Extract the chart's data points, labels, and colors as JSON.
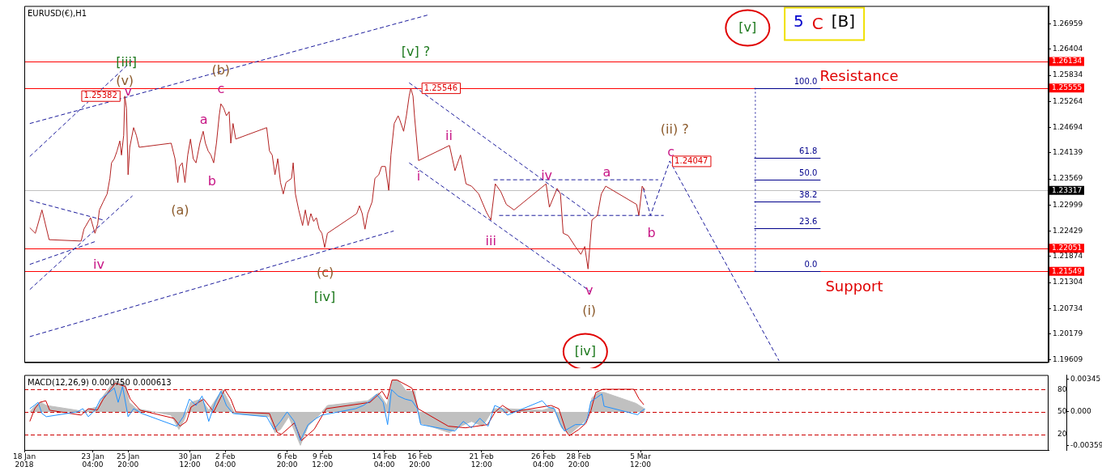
{
  "chart_data": [
    {
      "type": "line",
      "title": "EURUSD(€),H1",
      "xlim": [
        "2018-01-18T00:00",
        "2018-04-05T07:00"
      ],
      "ylim": [
        1.1956,
        1.2735
      ],
      "y2lim": [
        -49.65,
        144.81
      ],
      "tick_labels": "y",
      "marker": "none",
      "yticks": [
        1.26959,
        1.26404,
        1.25834,
        1.25264,
        1.24694,
        1.24139,
        1.23569,
        1.22999,
        1.22429,
        1.21874,
        1.21304,
        1.20734,
        1.20179,
        1.19609
      ],
      "series": [
        {
          "color": "#b22222",
          "x": [
            "2018-01-18T10:00",
            "2018-01-18T20:00",
            "2018-01-19T08:00",
            "2018-01-19T21:00",
            "2018-01-22T07:00",
            "2018-01-22T12:00",
            "2018-01-23T00:00",
            "2018-01-23T08:00",
            "2018-01-23T13:00",
            "2018-01-23T16:00",
            "2018-01-23T23:00",
            "2018-01-24T06:00",
            "2018-01-24T11:00",
            "2018-01-24T14:00",
            "2018-01-24T19:00",
            "2018-01-25T00:00",
            "2018-01-25T05:00",
            "2018-01-25T08:00",
            "2018-01-25T12:00",
            "2018-01-25T14:00",
            "2018-01-25T17:00",
            "2018-01-25T20:00",
            "2018-01-25T23:00",
            "2018-01-26T06:00",
            "2018-01-26T11:00",
            "2018-01-26T16:00",
            "2018-01-29T02:00",
            "2018-01-29T09:00",
            "2018-01-29T14:00",
            "2018-01-29T17:00",
            "2018-01-29T22:00",
            "2018-01-30T03:00",
            "2018-01-30T08:00",
            "2018-01-30T13:00",
            "2018-01-30T18:00",
            "2018-01-30T23:00",
            "2018-01-31T06:00",
            "2018-01-31T12:00",
            "2018-01-31T16:00",
            "2018-01-31T21:00",
            "2018-02-01T02:00",
            "2018-02-01T07:00",
            "2018-02-01T12:00",
            "2018-02-01T17:00",
            "2018-02-01T20:00",
            "2018-02-02T01:00",
            "2018-02-02T06:00",
            "2018-02-02T11:00",
            "2018-02-02T14:00",
            "2018-02-02T18:00",
            "2018-02-02T23:00",
            "2018-02-05T07:00",
            "2018-02-05T12:00",
            "2018-02-05T17:00",
            "2018-02-05T22:00",
            "2018-02-06T03:00",
            "2018-02-06T08:00",
            "2018-02-06T13:00",
            "2018-02-06T18:00",
            "2018-02-07T04:00",
            "2018-02-07T07:00",
            "2018-02-07T11:00",
            "2018-02-07T17:00",
            "2018-02-08T00:00",
            "2018-02-08T05:00",
            "2018-02-08T10:00",
            "2018-02-08T15:00",
            "2018-02-08T20:00",
            "2018-02-09T01:00",
            "2018-02-09T06:00",
            "2018-02-09T11:00",
            "2018-02-09T16:00",
            "2018-02-09T21:00",
            "2018-02-12T02:00",
            "2018-02-12T07:00",
            "2018-02-12T12:00",
            "2018-02-12T17:00",
            "2018-02-12T22:00",
            "2018-02-13T06:00",
            "2018-02-13T11:00",
            "2018-02-13T18:00",
            "2018-02-13T23:00",
            "2018-02-14T06:00",
            "2018-02-14T12:00",
            "2018-02-14T16:00",
            "2018-02-14T22:00",
            "2018-02-15T05:00",
            "2018-02-15T08:00",
            "2018-02-15T15:00",
            "2018-02-15T20:00",
            "2018-02-16T01:00",
            "2018-02-16T04:00",
            "2018-02-16T08:00",
            "2018-02-16T11:00",
            "2018-02-16T18:00",
            "2018-02-19T02:00",
            "2018-02-19T12:00",
            "2018-02-19T22:00",
            "2018-02-20T08:00",
            "2018-02-20T18:00",
            "2018-02-21T07:00",
            "2018-02-21T21:00",
            "2018-02-22T05:00",
            "2018-02-22T13:00",
            "2018-02-22T23:00",
            "2018-02-23T09:00",
            "2018-02-23T23:00",
            "2018-02-26T09:00",
            "2018-02-26T15:00",
            "2018-02-27T05:00",
            "2018-02-27T11:00",
            "2018-02-27T16:00",
            "2018-02-28T01:00",
            "2018-02-28T14:00",
            "2018-03-01T00:00",
            "2018-03-01T07:00",
            "2018-03-01T13:00",
            "2018-03-01T17:00",
            "2018-03-01T20:00",
            "2018-03-02T06:00",
            "2018-03-02T13:00",
            "2018-03-02T21:00",
            "2018-03-05T05:00",
            "2018-03-05T09:00",
            "2018-03-05T15:00",
            "2018-03-05T20:00"
          ],
          "values": [
            1.225,
            1.2238,
            1.2289,
            1.2224,
            1.2221,
            1.2247,
            1.2272,
            1.2238,
            1.2259,
            1.2289,
            1.2307,
            1.2324,
            1.2358,
            1.2392,
            1.2401,
            1.2418,
            1.244,
            1.2409,
            1.2452,
            1.2538,
            1.2512,
            1.2366,
            1.2426,
            1.2469,
            1.2452,
            1.2426,
            1.2435,
            1.2401,
            1.2349,
            1.2384,
            1.2392,
            1.2349,
            1.2409,
            1.2444,
            1.2401,
            1.2392,
            1.2435,
            1.2461,
            1.2435,
            1.2418,
            1.2409,
            1.2392,
            1.2435,
            1.2495,
            1.2521,
            1.2512,
            1.2495,
            1.2504,
            1.2435,
            1.2478,
            1.2444,
            1.2469,
            1.2418,
            1.2409,
            1.2366,
            1.2401,
            1.2349,
            1.2324,
            1.2349,
            1.2358,
            1.2392,
            1.2324,
            1.2289,
            1.2255,
            1.2289,
            1.2255,
            1.2281,
            1.2264,
            1.2272,
            1.2247,
            1.2238,
            1.2207,
            1.2238,
            1.2281,
            1.2298,
            1.2281,
            1.2247,
            1.2281,
            1.2307,
            1.2358,
            1.2366,
            1.2384,
            1.2384,
            1.2332,
            1.2409,
            1.2478,
            1.2495,
            1.2486,
            1.2461,
            1.2495,
            1.2538,
            1.2555,
            1.2538,
            1.249,
            1.2397,
            1.243,
            1.2375,
            1.2409,
            1.2346,
            1.2341,
            1.2324,
            1.2284,
            1.2267,
            1.2346,
            1.2329,
            1.2301,
            1.2289,
            1.2346,
            1.2295,
            1.2336,
            1.2324,
            1.2238,
            1.2233,
            1.2209,
            1.2192,
            1.2209,
            1.216,
            1.2221,
            1.2267,
            1.2277,
            1.2324,
            1.2341,
            1.2301,
            1.2277,
            1.2341,
            1.2332
          ]
        },
        {
          "color": "#1c1c9c",
          "line_style": "dashed",
          "x": [
            "2018-01-18T10:00",
            "2018-02-17T10:00"
          ],
          "values": [
            1.2478,
            1.2715
          ]
        },
        {
          "color": "#1c1c9c",
          "line_style": "dashed",
          "x": [
            "2018-01-18T10:00",
            "2018-01-26T03:00"
          ],
          "values": [
            1.2406,
            1.2615
          ]
        },
        {
          "color": "#1c1c9c",
          "line_style": "dashed",
          "x": [
            "2018-01-18T10:00",
            "2018-01-26T04:00"
          ],
          "values": [
            1.2115,
            1.232
          ]
        },
        {
          "color": "#1c1c9c",
          "line_style": "dashed",
          "x": [
            "2018-01-18T10:00",
            "2018-01-23T11:00"
          ],
          "values": [
            1.217,
            1.2221
          ]
        },
        {
          "color": "#1c1c9c",
          "line_style": "dashed",
          "x": [
            "2018-01-18T10:00",
            "2018-01-23T23:00"
          ],
          "values": [
            1.231,
            1.2267
          ]
        },
        {
          "color": "#1c1c9c",
          "line_style": "dashed",
          "x": [
            "2018-01-18T10:00",
            "2018-02-14T21:00"
          ],
          "values": [
            1.2012,
            1.2243
          ]
        },
        {
          "color": "#1c1c9c",
          "line_style": "dashed",
          "x": [
            "2018-02-16T01:00",
            "2018-03-01T20:00"
          ],
          "values": [
            1.2567,
            1.2277
          ]
        },
        {
          "color": "#1c1c9c",
          "line_style": "dashed",
          "x": [
            "2018-02-16T01:00",
            "2018-03-01T18:00"
          ],
          "values": [
            1.2392,
            1.211
          ]
        },
        {
          "color": "#1c1c9c",
          "line_style": "dashed",
          "x": [
            "2018-02-22T10:00",
            "2018-03-06T20:00"
          ],
          "values": [
            1.2355,
            1.2355
          ]
        },
        {
          "color": "#1c1c9c",
          "line_style": "dashed",
          "x": [
            "2018-02-22T20:00",
            "2018-03-07T06:00"
          ],
          "values": [
            1.2277,
            1.2277
          ]
        },
        {
          "color": "#1c1c9c",
          "line_style": "dashed",
          "x": [
            "2018-03-05T17:00",
            "2018-03-06T06:00",
            "2018-03-07T17:00",
            "2018-03-15T23:00"
          ],
          "values": [
            1.2336,
            1.2277,
            1.2396,
            1.1959
          ]
        },
        {
          "color": "#1c1c9c",
          "line_style": "dotted",
          "x": [
            "2018-03-14T04:00",
            "2018-03-14T04:00"
          ],
          "values": [
            1.2556,
            1.2155
          ]
        }
      ],
      "ref_lines": [
        {
          "axis": "y",
          "value": 1.26134,
          "label": "1.26134",
          "color": "#ff0000"
        },
        {
          "axis": "y",
          "value": 1.25555,
          "label": "1.25555",
          "color": "#ff0000"
        },
        {
          "axis": "y",
          "value": 1.23317,
          "label": "1.23317",
          "color": "#c0c0c0"
        },
        {
          "axis": "y",
          "value": 1.22051,
          "label": "1.22051",
          "color": "#ff0000"
        },
        {
          "axis": "y",
          "value": 1.21549,
          "label": "1.21549",
          "color": "#ff0000"
        },
        {
          "axis": "y2",
          "value": 100,
          "label": "100.0",
          "color": "#00008b"
        },
        {
          "axis": "y2",
          "value": 61.8,
          "label": "61.8",
          "color": "#00008b"
        },
        {
          "axis": "y2",
          "value": 50,
          "label": "50.0",
          "color": "#00008b"
        },
        {
          "axis": "y2",
          "value": 38.2,
          "label": "38.2",
          "color": "#00008b"
        },
        {
          "axis": "y2",
          "value": 23.6,
          "label": "23.6",
          "color": "#00008b"
        },
        {
          "axis": "y2",
          "value": 0,
          "label": "0.0",
          "color": "#00008b"
        }
      ],
      "annotations": [
        "[iii]",
        "(v)",
        "v",
        {
          "text": "1.25382",
          "x": "2018-01-25T14:00",
          "y": 1.2538
        },
        "iv",
        "(b)",
        "c",
        "a",
        "b",
        "(a)",
        "(c)",
        "[iv]",
        "[v] ?",
        {
          "text": "1.25546",
          "x": "2018-02-16T04:00",
          "y": 1.2555
        },
        "ii",
        "i",
        "iii",
        "iv",
        "v",
        "(i)",
        "[iv]",
        "a",
        "b",
        "c",
        "(ii) ?",
        "1.24047",
        "[v]",
        "Resistance",
        "Support",
        "5 C [B]"
      ]
    },
    {
      "type": "line",
      "title": "MACD(12,26,9) 0.000750 0.000613",
      "xlim": [
        "2018-01-18T00:00",
        "2018-04-05T07:00"
      ],
      "ylim": [
        -0.00404,
        0.00391
      ],
      "y2lim": [
        -0.9,
        99.3
      ],
      "marker": "none",
      "xticks": [
        {
          "value": "2018-01-18T00:00",
          "label": "18 Jan 2018"
        },
        {
          "value": "2018-01-23T04:00",
          "label": "23 Jan 04:00"
        },
        {
          "value": "2018-01-25T20:00",
          "label": "25 Jan 20:00"
        },
        {
          "value": "2018-01-30T12:00",
          "label": "30 Jan 12:00"
        },
        {
          "value": "2018-02-02T04:00",
          "label": "2 Feb 04:00"
        },
        {
          "value": "2018-02-06T20:00",
          "label": "6 Feb 20:00"
        },
        {
          "value": "2018-02-09T12:00",
          "label": "9 Feb 12:00"
        },
        {
          "value": "2018-02-14T04:00",
          "label": "14 Feb 04:00"
        },
        {
          "value": "2018-02-16T20:00",
          "label": "16 Feb 20:00"
        },
        {
          "value": "2018-02-21T12:00",
          "label": "21 Feb 12:00"
        },
        {
          "value": "2018-02-26T04:00",
          "label": "26 Feb 04:00"
        },
        {
          "value": "2018-02-28T20:00",
          "label": "28 Feb 20:00"
        },
        {
          "value": "2018-03-05T12:00",
          "label": "5 Mar 12:00"
        }
      ],
      "yticks": [
        0.00345,
        {
          "value": 0,
          "label": "0.000"
        },
        -0.00359
      ],
      "y2ticks": [
        80,
        50,
        20
      ],
      "series": [
        {
          "type": "area",
          "color": "#c0c0c0",
          "x": [
            "2018-01-18T10:00",
            "2018-01-18T20:00",
            "2018-01-19T06:00",
            "2018-01-19T16:00",
            "2018-01-22T00:00",
            "2018-01-22T09:00",
            "2018-01-22T22:00",
            "2018-01-23T13:00",
            "2018-01-23T23:00",
            "2018-01-24T14:00",
            "2018-01-24T22:00",
            "2018-01-25T06:00",
            "2018-01-25T15:00",
            "2018-01-25T22:00",
            "2018-01-26T11:00",
            "2018-01-29T02:00",
            "2018-01-29T16:00",
            "2018-01-30T03:00",
            "2018-01-30T13:00",
            "2018-01-31T09:00",
            "2018-01-31T22:00",
            "2018-02-01T15:00",
            "2018-02-01T23:00",
            "2018-02-02T08:00",
            "2018-02-02T21:00",
            "2018-02-05T12:00",
            "2018-02-05T22:00",
            "2018-02-06T08:00",
            "2018-02-06T23:00",
            "2018-02-07T20:00",
            "2018-02-08T10:00",
            "2018-02-09T06:00",
            "2018-02-09T21:00",
            "2018-02-12T22:00",
            "2018-02-13T18:00",
            "2018-02-14T09:00",
            "2018-02-14T19:00",
            "2018-02-15T05:00",
            "2018-02-15T20:00",
            "2018-02-16T11:00",
            "2018-02-16T21:00",
            "2018-02-19T02:00",
            "2018-02-19T22:00",
            "2018-02-20T18:00",
            "2018-02-21T14:00",
            "2018-02-22T10:00",
            "2018-02-23T06:00",
            "2018-02-26T02:00",
            "2018-02-26T22:00",
            "2018-02-27T13:00",
            "2018-02-28T04:00",
            "2018-03-01T00:00",
            "2018-03-01T12:00",
            "2018-03-01T20:00",
            "2018-03-02T06:00",
            "2018-03-02T18:00",
            "2018-03-05T04:00",
            "2018-03-05T20:00"
          ],
          "values": [
            0,
            0.00068,
            0.00101,
            0.00068,
            0.00017,
            0,
            0.00034,
            0.00051,
            0.00169,
            0.00287,
            0.00338,
            0.00304,
            0.00304,
            0.00101,
            0.00034,
            -0.00034,
            -0.00186,
            -0.00068,
            0.00101,
            0.00135,
            0.00017,
            0.00169,
            0.00237,
            0.00135,
            -0.00017,
            -0.00051,
            -0.0022,
            -0.00186,
            -0.00051,
            -0.00355,
            -0.00152,
            -0.00034,
            0.00068,
            0.00118,
            0.00203,
            0.00068,
            0.00338,
            0.00338,
            0.0022,
            0.0022,
            -0.00118,
            -0.0022,
            -0.00152,
            -0.00101,
            -0.00152,
            0.00034,
            0.00034,
            0.00017,
            0.00051,
            -0.00169,
            -0.00237,
            -0.00135,
            -0.00068,
            0.00148,
            0.00207,
            0.00207,
            0.0009,
            0.0003
          ]
        },
        {
          "color": "#1e90ff",
          "x": [
            "2018-01-18T10:00",
            "2018-01-18T18:00",
            "2018-01-19T01:00",
            "2018-01-19T08:00",
            "2018-01-19T16:00",
            "2018-01-22T00:00",
            "2018-01-22T10:00",
            "2018-01-22T20:00",
            "2018-01-23T08:00",
            "2018-01-23T18:00",
            "2018-01-24T09:00",
            "2018-01-24T19:00",
            "2018-01-25T02:00",
            "2018-01-25T10:00",
            "2018-01-25T20:00",
            "2018-01-26T06:00",
            "2018-01-26T21:00",
            "2018-01-29T12:00",
            "2018-01-30T00:00",
            "2018-01-30T11:00",
            "2018-01-30T23:00",
            "2018-01-31T10:00",
            "2018-01-31T22:00",
            "2018-02-01T10:00",
            "2018-02-01T20:00",
            "2018-02-02T06:00",
            "2018-02-02T18:00",
            "2018-02-05T07:00",
            "2018-02-05T20:00",
            "2018-02-06T08:00",
            "2018-02-06T20:00",
            "2018-02-07T09:00",
            "2018-02-07T20:00",
            "2018-02-08T10:00",
            "2018-02-09T01:00",
            "2018-02-09T11:00",
            "2018-02-12T00:00",
            "2018-02-12T14:00",
            "2018-02-13T03:00",
            "2018-02-13T14:00",
            "2018-02-14T02:00",
            "2018-02-14T10:00",
            "2018-02-14T17:00",
            "2018-02-15T05:00",
            "2018-02-15T18:00",
            "2018-02-16T06:00",
            "2018-02-16T16:00",
            "2018-02-16T22:00",
            "2018-02-19T12:00",
            "2018-02-20T03:00",
            "2018-02-20T18:00",
            "2018-02-21T09:00",
            "2018-02-22T00:00",
            "2018-02-22T12:00",
            "2018-02-23T01:00",
            "2018-02-23T11:00",
            "2018-02-26T02:00",
            "2018-02-26T12:00",
            "2018-02-27T00:00",
            "2018-02-27T10:00",
            "2018-02-27T18:00",
            "2018-02-28T04:00",
            "2018-02-28T14:00",
            "2018-03-01T05:00",
            "2018-03-01T12:00",
            "2018-03-01T18:00",
            "2018-03-02T04:00",
            "2018-03-02T14:00",
            "2018-03-02T18:00",
            "2018-03-05T07:00",
            "2018-03-05T14:00",
            "2018-03-05T20:00"
          ],
          "values": [
            0.00034,
            0.00068,
            0.00101,
            -0.00017,
            -0.00051,
            0,
            0.00034,
            -0.00051,
            0.00017,
            0.00135,
            0.00203,
            0.00253,
            0.00101,
            0.0027,
            -0.00051,
            0.00034,
            -0.00017,
            -0.00152,
            -0.00051,
            0.00135,
            0.00068,
            0.00169,
            -0.00101,
            0.00101,
            0.0022,
            0.00068,
            -0.00017,
            -0.00051,
            -0.00186,
            -0.00101,
            0,
            -0.00101,
            -0.00304,
            -0.00135,
            -0.00068,
            -0.00034,
            0.00034,
            0.00068,
            0.00118,
            0.00186,
            0.00101,
            -0.00135,
            0.00237,
            0.00169,
            0.00135,
            0.00118,
            0.00034,
            -0.00135,
            -0.00203,
            -0.00101,
            -0.00169,
            -0.00068,
            -0.00152,
            0.00068,
            0.00034,
            -0.00034,
            0.00118,
            0.00051,
            0.00034,
            -0.00118,
            -0.00203,
            -0.00169,
            -0.00135,
            -0.00135,
            -0.00068,
            0.0011,
            0.00148,
            0.0019,
            0.0006,
            -0.0003,
            0.0001,
            0.0003
          ]
        },
        {
          "color": "#cc0000",
          "x": [
            "2018-01-18T10:00",
            "2018-01-18T19:00",
            "2018-01-19T04:00",
            "2018-01-19T15:00",
            "2018-01-19T22:00",
            "2018-01-22T07:00",
            "2018-01-22T20:00",
            "2018-01-23T12:00",
            "2018-01-23T23:00",
            "2018-01-24T12:00",
            "2018-01-24T21:00",
            "2018-01-25T06:00",
            "2018-01-25T15:00",
            "2018-01-26T00:00",
            "2018-01-26T18:00",
            "2018-01-29T07:00",
            "2018-01-29T18:00",
            "2018-01-30T06:00",
            "2018-01-30T14:00",
            "2018-01-31T13:00",
            "2018-02-01T07:00",
            "2018-02-02T03:00",
            "2018-02-02T14:00",
            "2018-02-02T23:00",
            "2018-02-05T12:00",
            "2018-02-06T02:00",
            "2018-02-06T10:00",
            "2018-02-07T09:00",
            "2018-02-07T22:00",
            "2018-02-08T21:00",
            "2018-02-09T19:00",
            "2018-02-13T02:00",
            "2018-02-14T00:00",
            "2018-02-14T09:00",
            "2018-02-14T18:00",
            "2018-02-15T03:00",
            "2018-02-16T06:00",
            "2018-02-16T17:00",
            "2018-02-19T00:00",
            "2018-02-20T07:00",
            "2018-02-21T23:00",
            "2018-02-22T13:00",
            "2018-02-23T02:00",
            "2018-02-23T20:00",
            "2018-02-26T18:00",
            "2018-02-27T08:00",
            "2018-02-27T21:00",
            "2018-02-28T03:00",
            "2018-02-28T20:00",
            "2018-03-01T09:00",
            "2018-03-01T18:00",
            "2018-03-02T03:00",
            "2018-03-02T16:00",
            "2018-03-05T00:00",
            "2018-03-05T09:00",
            "2018-03-05T18:00"
          ],
          "values": [
            -0.00101,
            0.00034,
            0.00101,
            0.00118,
            0.00017,
            -0.00034,
            0.00034,
            0.00017,
            0.00135,
            0.00237,
            0.00304,
            0.00287,
            0.0027,
            0.00135,
            0.00017,
            -0.00068,
            -0.00152,
            -0.00101,
            0.00051,
            0.00135,
            0,
            0.00237,
            0.00135,
            0,
            -0.00017,
            -0.0022,
            -0.00237,
            -0.00118,
            -0.00304,
            -0.00186,
            0.00034,
            0.00101,
            0.0022,
            0.00135,
            0.00338,
            0.00338,
            0.00253,
            0.00034,
            -0.00152,
            -0.00169,
            -0.00135,
            0,
            0.00068,
            0,
            0.00068,
            0.00034,
            -0.00203,
            -0.00253,
            -0.00188,
            -0.00122,
            0.0001,
            0.00207,
            0.0024,
            0.0024,
            0.00141,
            0.00076
          ]
        }
      ],
      "ref_lines": [
        {
          "axis": "y2",
          "value": 80,
          "color": "#cc0000",
          "line_style": "dashed"
        },
        {
          "axis": "y2",
          "value": 50,
          "color": "#cc0000",
          "line_style": "dashed"
        },
        {
          "axis": "y2",
          "value": 20,
          "color": "#cc0000",
          "line_style": "dashed"
        }
      ]
    }
  ]
}
